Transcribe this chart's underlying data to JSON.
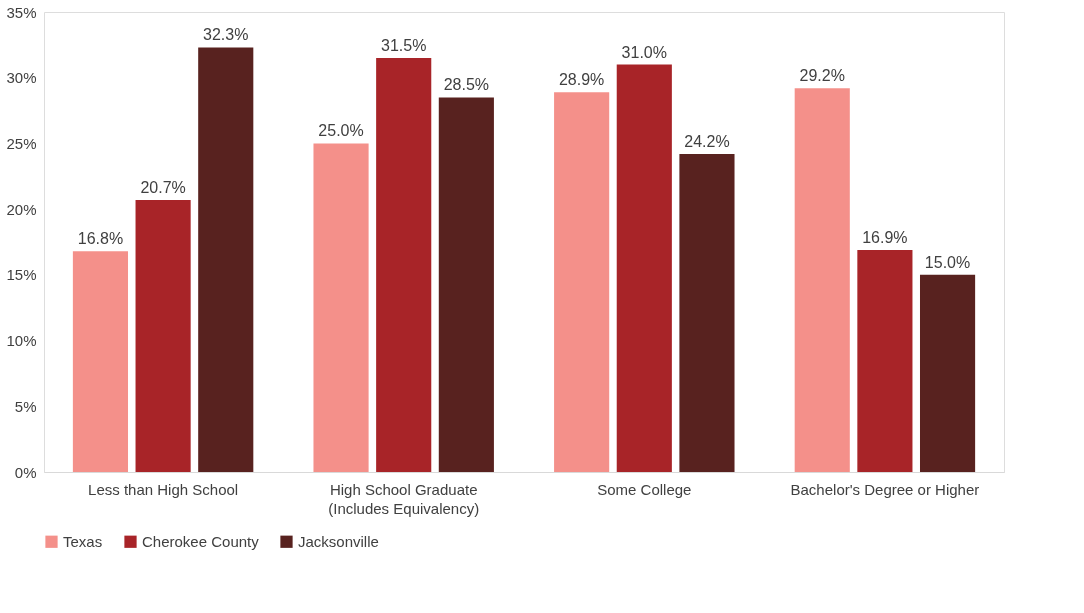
{
  "chart_data": {
    "type": "bar",
    "categories": [
      "Less than High School",
      "High School Graduate\n(Includes Equivalency)",
      "Some College",
      "Bachelor's Degree or Higher"
    ],
    "series": [
      {
        "name": "Texas",
        "color": "#f4908a",
        "values": [
          16.8,
          25.0,
          28.9,
          29.2
        ],
        "value_labels": [
          "16.8%",
          "25.0%",
          "28.9%",
          "29.2%"
        ]
      },
      {
        "name": "Cherokee County",
        "color": "#a82428",
        "values": [
          20.7,
          31.5,
          31.0,
          16.9
        ],
        "value_labels": [
          "20.7%",
          "31.5%",
          "31.0%",
          "16.9%"
        ]
      },
      {
        "name": "Jacksonville",
        "color": "#58221f",
        "values": [
          32.3,
          28.5,
          24.2,
          15.0
        ],
        "value_labels": [
          "32.3%",
          "28.5%",
          "24.2%",
          "15.0%"
        ]
      }
    ],
    "ylim": [
      0,
      35
    ],
    "yticks": [
      {
        "value": 0,
        "label": "0%"
      },
      {
        "value": 5,
        "label": "5%"
      },
      {
        "value": 10,
        "label": "10%"
      },
      {
        "value": 15,
        "label": "15%"
      },
      {
        "value": 20,
        "label": "20%"
      },
      {
        "value": 25,
        "label": "25%"
      },
      {
        "value": 30,
        "label": "30%"
      },
      {
        "value": 35,
        "label": "35%"
      }
    ],
    "grid": false,
    "legend": "bottom"
  }
}
